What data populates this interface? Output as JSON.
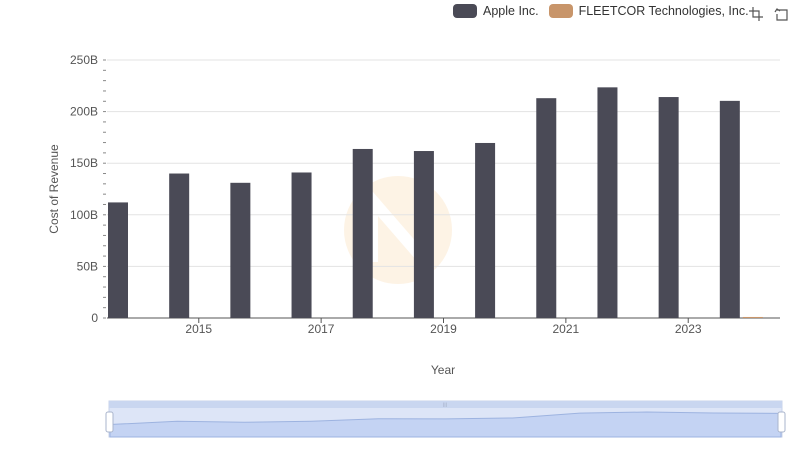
{
  "legend": [
    {
      "name": "Apple Inc.",
      "color": "#4a4a56"
    },
    {
      "name": "FLEETCOR Technologies, Inc.",
      "color": "#c8956a"
    }
  ],
  "toolbar": {
    "icons": [
      "zoom-icon",
      "restore-icon"
    ]
  },
  "chart_data": {
    "type": "bar",
    "xlabel": "Year",
    "ylabel": "Cost of Revenue",
    "x_ticks": [
      "2015",
      "2017",
      "2019",
      "2021",
      "2023"
    ],
    "y_ticks": [
      "0",
      "50B",
      "100B",
      "150B",
      "200B",
      "250B"
    ],
    "ylim": [
      0,
      250000000000
    ],
    "grid": true,
    "legend_position": "top-right",
    "categories": [
      "2014",
      "2015",
      "2016",
      "2017",
      "2018",
      "2019",
      "2020",
      "2021",
      "2022",
      "2023",
      "2024"
    ],
    "series": [
      {
        "name": "Apple Inc.",
        "color": "#4a4a56",
        "values": [
          112000000000,
          140000000000,
          131000000000,
          141000000000,
          163800000000,
          161800000000,
          169600000000,
          213000000000,
          223500000000,
          214100000000,
          210400000000
        ]
      },
      {
        "name": "FLEETCOR Technologies, Inc.",
        "color": "#c8956a",
        "values": [
          0,
          0,
          0,
          0,
          0,
          0,
          0,
          0,
          0,
          0,
          1000000000
        ]
      }
    ]
  }
}
